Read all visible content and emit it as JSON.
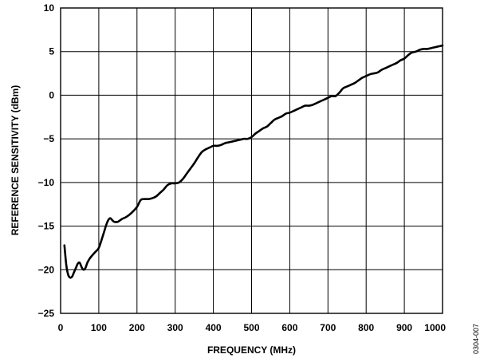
{
  "chart_data": {
    "type": "line",
    "xlabel": "FREQUENCY (MHz)",
    "ylabel": "REFERENCE SENSITIVITY (dBm)",
    "xlim": [
      0,
      1000
    ],
    "ylim": [
      -25,
      10
    ],
    "xticks": [
      0,
      100,
      200,
      300,
      400,
      500,
      600,
      700,
      800,
      900,
      1000
    ],
    "yticks": [
      10,
      5,
      0,
      -5,
      -10,
      -15,
      -20,
      -25
    ],
    "yticklabels": [
      "10",
      "5",
      "0",
      "−5",
      "−10",
      "−15",
      "−20",
      "−25"
    ],
    "grid": true,
    "series": [
      {
        "color": "#000000",
        "x": [
          10,
          15,
          20,
          25,
          30,
          35,
          40,
          45,
          50,
          55,
          60,
          65,
          70,
          75,
          80,
          90,
          100,
          110,
          120,
          125,
          130,
          135,
          140,
          150,
          160,
          170,
          180,
          190,
          200,
          210,
          220,
          230,
          240,
          250,
          260,
          270,
          280,
          290,
          300,
          310,
          320,
          330,
          340,
          350,
          360,
          370,
          380,
          390,
          400,
          410,
          420,
          430,
          440,
          450,
          460,
          470,
          480,
          490,
          500,
          510,
          520,
          530,
          540,
          550,
          560,
          570,
          580,
          590,
          600,
          610,
          620,
          630,
          640,
          650,
          660,
          670,
          680,
          690,
          700,
          710,
          720,
          730,
          740,
          750,
          760,
          770,
          780,
          790,
          800,
          810,
          820,
          830,
          840,
          850,
          860,
          870,
          880,
          890,
          900,
          910,
          920,
          930,
          940,
          950,
          960,
          970,
          980,
          990,
          1000
        ],
        "y": [
          -17.2,
          -19.5,
          -20.6,
          -20.9,
          -20.8,
          -20.3,
          -19.8,
          -19.3,
          -19.2,
          -19.7,
          -20.0,
          -19.8,
          -19.2,
          -18.8,
          -18.5,
          -18.0,
          -17.5,
          -16.2,
          -14.8,
          -14.3,
          -14.1,
          -14.3,
          -14.5,
          -14.5,
          -14.2,
          -14.0,
          -13.7,
          -13.3,
          -12.8,
          -12.0,
          -11.9,
          -11.9,
          -11.8,
          -11.6,
          -11.2,
          -10.8,
          -10.3,
          -10.1,
          -10.1,
          -10.0,
          -9.6,
          -9.0,
          -8.4,
          -7.8,
          -7.1,
          -6.5,
          -6.2,
          -6.0,
          -5.8,
          -5.8,
          -5.7,
          -5.5,
          -5.4,
          -5.3,
          -5.2,
          -5.1,
          -5.0,
          -5.0,
          -4.8,
          -4.4,
          -4.1,
          -3.8,
          -3.6,
          -3.2,
          -2.8,
          -2.6,
          -2.4,
          -2.1,
          -2.0,
          -1.8,
          -1.6,
          -1.4,
          -1.2,
          -1.2,
          -1.1,
          -0.9,
          -0.7,
          -0.5,
          -0.3,
          -0.1,
          -0.1,
          0.3,
          0.8,
          1.0,
          1.2,
          1.4,
          1.7,
          2.0,
          2.2,
          2.4,
          2.5,
          2.6,
          2.9,
          3.1,
          3.3,
          3.5,
          3.7,
          4.0,
          4.2,
          4.6,
          4.9,
          5.0,
          5.2,
          5.3,
          5.3,
          5.4,
          5.5,
          5.6,
          5.7
        ]
      }
    ]
  },
  "figure_id": "0304-007"
}
